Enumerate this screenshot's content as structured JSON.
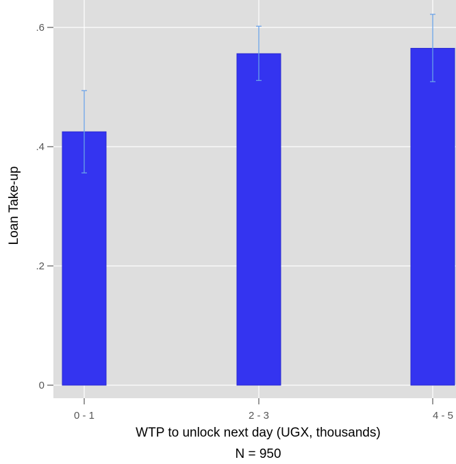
{
  "chart_data": {
    "type": "bar",
    "categories": [
      "0 - 1",
      "2 - 3",
      "4 - 5"
    ],
    "values": [
      0.425,
      0.556,
      0.565
    ],
    "error_bars": [
      {
        "low": 0.356,
        "high": 0.494
      },
      {
        "low": 0.511,
        "high": 0.602
      },
      {
        "low": 0.509,
        "high": 0.622
      }
    ],
    "ylabel": "Loan Take-up",
    "xlabel": "WTP to unlock next day (UGX, thousands)",
    "note": "N = 950",
    "ylim": [
      0,
      0.6
    ],
    "yticks": [
      {
        "value": 0,
        "label": "0"
      },
      {
        "value": 0.2,
        "label": ".2"
      },
      {
        "value": 0.4,
        "label": ".4"
      },
      {
        "value": 0.6,
        "label": ".6"
      }
    ],
    "grid": true,
    "colors": {
      "bar": "#3434f0",
      "bar_edge": "#2a2ad0",
      "error_bar": "#6aa2e8",
      "plot_background": "#dedede",
      "grid": "#ffffff"
    }
  }
}
